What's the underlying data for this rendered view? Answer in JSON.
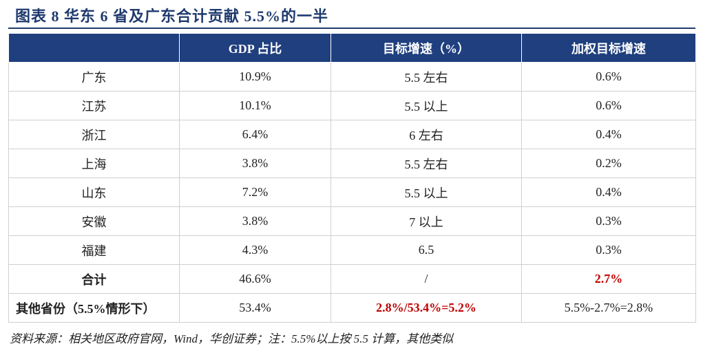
{
  "header": {
    "title": "图表 8   华东 6 省及广东合计贡献 5.5%的一半"
  },
  "table": {
    "columns": [
      "GDP 占比",
      "目标增速（%）",
      "加权目标增速"
    ],
    "rows": [
      [
        "广东",
        "10.9%",
        "5.5 左右",
        "0.6%"
      ],
      [
        "江苏",
        "10.1%",
        "5.5 以上",
        "0.6%"
      ],
      [
        "浙江",
        "6.4%",
        "6 左右",
        "0.4%"
      ],
      [
        "上海",
        "3.8%",
        "5.5 左右",
        "0.2%"
      ],
      [
        "山东",
        "7.2%",
        "5.5 以上",
        "0.4%"
      ],
      [
        "安徽",
        "3.8%",
        "7 以上",
        "0.3%"
      ],
      [
        "福建",
        "4.3%",
        "6.5",
        "0.3%"
      ],
      [
        "合计",
        "46.6%",
        "/",
        "2.7%"
      ],
      [
        "其他省份（5.5%情形下）",
        "53.4%",
        "2.8%/53.4%=5.2%",
        "5.5%-2.7%=2.8%"
      ]
    ]
  },
  "footer": {
    "source": "资料来源：相关地区政府官网，Wind，华创证券；注：5.5%以上按 5.5 计算，其他类似"
  }
}
